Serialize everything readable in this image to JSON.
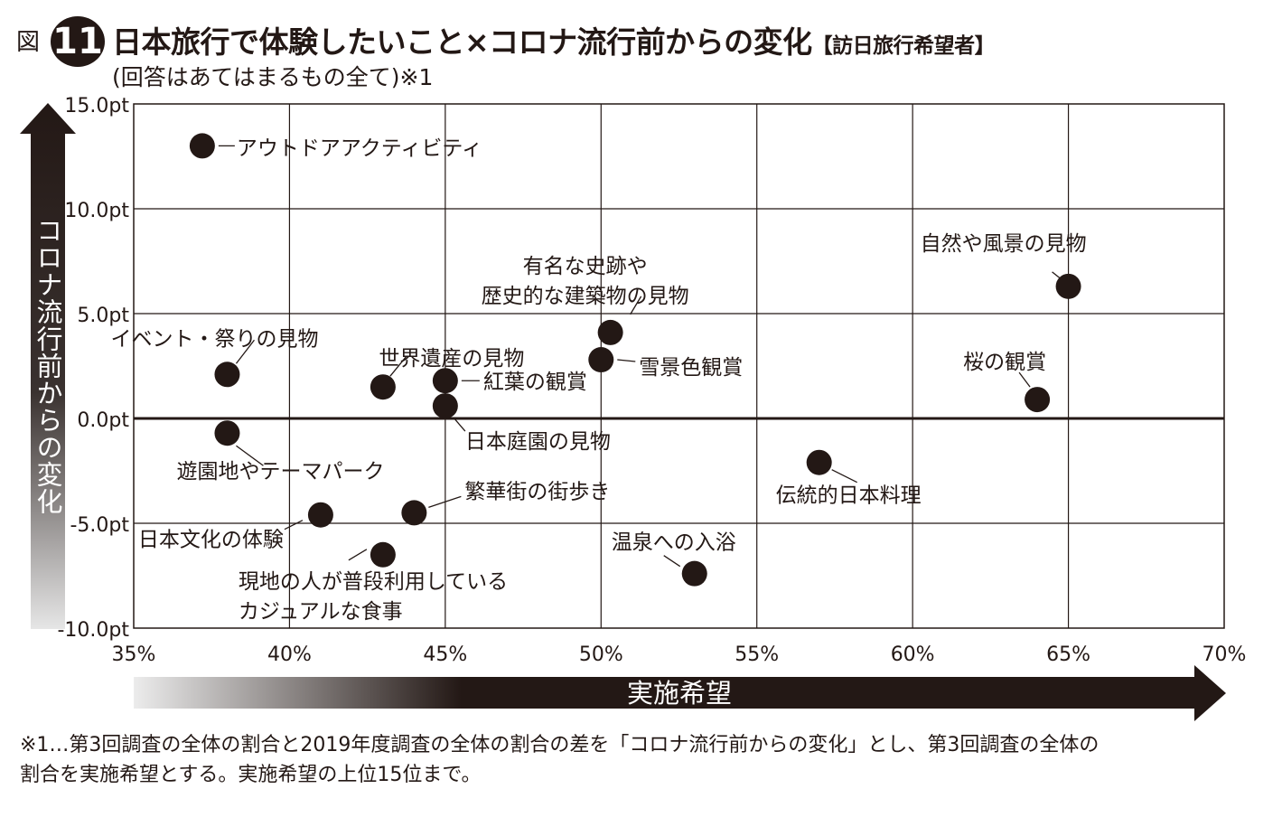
{
  "header": {
    "badge": "図",
    "number": "11",
    "title": "日本旅行で体験したいこと×コロナ流行前からの変化",
    "title_suffix": "【訪日旅行希望者】",
    "subtitle": "(回答はあてはまるもの全て)※1"
  },
  "footnote": {
    "line1": "※1…第3回調査の全体の割合と2019年度調査の全体の割合の差を「コロナ流行前からの変化」とし、第3回調査の全体の",
    "line2": "割合を実施希望とする。実施希望の上位15位まで。"
  },
  "chart_data": {
    "type": "scatter",
    "xlabel": "実施希望",
    "ylabel": "コロナ流行前からの変化",
    "xlim": [
      35,
      70
    ],
    "ylim": [
      -10,
      15
    ],
    "x_ticks": [
      35,
      40,
      45,
      50,
      55,
      60,
      65,
      70
    ],
    "x_tick_labels": [
      "35%",
      "40%",
      "45%",
      "50%",
      "55%",
      "60%",
      "65%",
      "70%"
    ],
    "y_ticks": [
      15,
      10,
      5,
      0,
      -5,
      -10
    ],
    "y_tick_labels": [
      "15.0pt",
      "10.0pt",
      "5.0pt",
      "0.0pt",
      "-5.0pt",
      "-10.0pt"
    ],
    "grid": true,
    "points": [
      {
        "label": "アウトドアアクティビティ",
        "x": 37.2,
        "y": 13.0
      },
      {
        "label": "自然や風景の見物",
        "x": 65.0,
        "y": 6.3
      },
      {
        "label": "有名な史跡や",
        "label2": "歴史的な建築物の見物",
        "x": 50.3,
        "y": 4.1
      },
      {
        "label": "雪景色観賞",
        "x": 50.0,
        "y": 2.8
      },
      {
        "label": "イベント・祭りの見物",
        "x": 38.0,
        "y": 2.1
      },
      {
        "label": "世界遺産の見物",
        "x": 43.0,
        "y": 1.5
      },
      {
        "label": "紅葉の観賞",
        "x": 45.0,
        "y": 1.8
      },
      {
        "label": "桜の観賞",
        "x": 64.0,
        "y": 0.9
      },
      {
        "label": "日本庭園の見物",
        "x": 45.0,
        "y": 0.6
      },
      {
        "label": "遊園地やテーマパーク",
        "x": 38.0,
        "y": -0.7
      },
      {
        "label": "伝統的日本料理",
        "x": 57.0,
        "y": -2.1
      },
      {
        "label": "繁華街の街歩き",
        "x": 44.0,
        "y": -4.5
      },
      {
        "label": "日本文化の体験",
        "x": 41.0,
        "y": -4.6
      },
      {
        "label": "現地の人が普段利用している",
        "label2": "カジュアルな食事",
        "x": 43.0,
        "y": -6.5
      },
      {
        "label": "温泉への入浴",
        "x": 53.0,
        "y": -7.4
      }
    ]
  }
}
